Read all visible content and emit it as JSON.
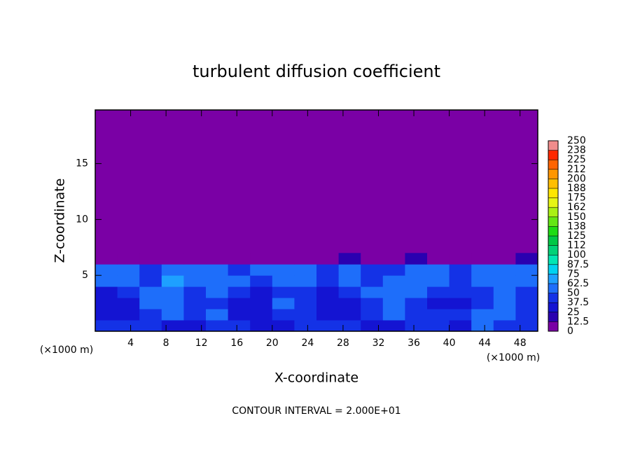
{
  "chart_data": {
    "type": "heatmap",
    "title": "turbulent diffusion coefficient",
    "xlabel": "X-coordinate",
    "ylabel": "Z-coordinate",
    "x_unit_left": "(×1000 m)",
    "x_unit_right": "(×1000 m)",
    "footer": "CONTOUR INTERVAL = 2.000E+01",
    "xlim": [
      0,
      50
    ],
    "ylim": [
      0,
      19.8
    ],
    "xticks": [
      4,
      8,
      12,
      16,
      20,
      24,
      28,
      32,
      36,
      40,
      44,
      48
    ],
    "yticks": [
      5,
      10,
      15
    ],
    "background_color": "#7a00a5",
    "x": [
      1.25,
      3.75,
      6.25,
      8.75,
      11.25,
      13.75,
      16.25,
      18.75,
      21.25,
      23.75,
      26.25,
      28.75,
      31.25,
      33.75,
      36.25,
      38.75,
      41.25,
      43.75,
      46.25,
      48.75
    ],
    "z": [
      0.5,
      1.5,
      2.5,
      3.5,
      4.5,
      5.5,
      6.5
    ],
    "values": [
      [
        40,
        45,
        40,
        35,
        30,
        45,
        40,
        35,
        30,
        40,
        45,
        40,
        30,
        35,
        45,
        40,
        35,
        50,
        45,
        40
      ],
      [
        35,
        30,
        45,
        55,
        40,
        50,
        35,
        30,
        45,
        40,
        35,
        30,
        40,
        55,
        40,
        45,
        40,
        55,
        50,
        45
      ],
      [
        30,
        35,
        50,
        60,
        45,
        40,
        30,
        35,
        55,
        45,
        30,
        35,
        45,
        50,
        40,
        35,
        30,
        45,
        55,
        40
      ],
      [
        35,
        40,
        55,
        50,
        45,
        50,
        40,
        35,
        45,
        40,
        35,
        40,
        50,
        55,
        50,
        40,
        45,
        40,
        60,
        45
      ],
      [
        50,
        55,
        45,
        65,
        50,
        55,
        50,
        45,
        50,
        55,
        45,
        60,
        45,
        50,
        55,
        60,
        45,
        55,
        50,
        50
      ],
      [
        55,
        50,
        40,
        55,
        60,
        50,
        45,
        50,
        55,
        50,
        45,
        60,
        40,
        45,
        50,
        55,
        45,
        60,
        55,
        50
      ],
      [
        0,
        0,
        0,
        5,
        10,
        0,
        0,
        5,
        0,
        0,
        10,
        15,
        5,
        0,
        20,
        0,
        5,
        0,
        10,
        15
      ]
    ],
    "colorbar": {
      "levels": [
        0,
        12.5,
        25,
        37.5,
        50,
        62.5,
        75,
        87.5,
        100,
        {
          "value": 112.5,
          "label": "112"
        },
        125,
        {
          "value": 137.5,
          "label": "138"
        },
        150,
        {
          "value": 162.5,
          "label": "162"
        },
        175,
        {
          "value": 187.5,
          "label": "188"
        },
        200,
        {
          "value": 212.5,
          "label": "212"
        },
        225,
        {
          "value": 237.5,
          "label": "238"
        },
        250
      ],
      "colors": [
        "#7a00a5",
        "#2a00b0",
        "#1414d2",
        "#1432e6",
        "#1e6efa",
        "#1ea0ff",
        "#00d2f0",
        "#00e6b4",
        "#00d278",
        "#00c846",
        "#1edc14",
        "#64e614",
        "#aaf014",
        "#e6f514",
        "#ffe600",
        "#ffbe00",
        "#ff9600",
        "#ff6400",
        "#ff2800",
        "#f08c8c"
      ]
    }
  }
}
